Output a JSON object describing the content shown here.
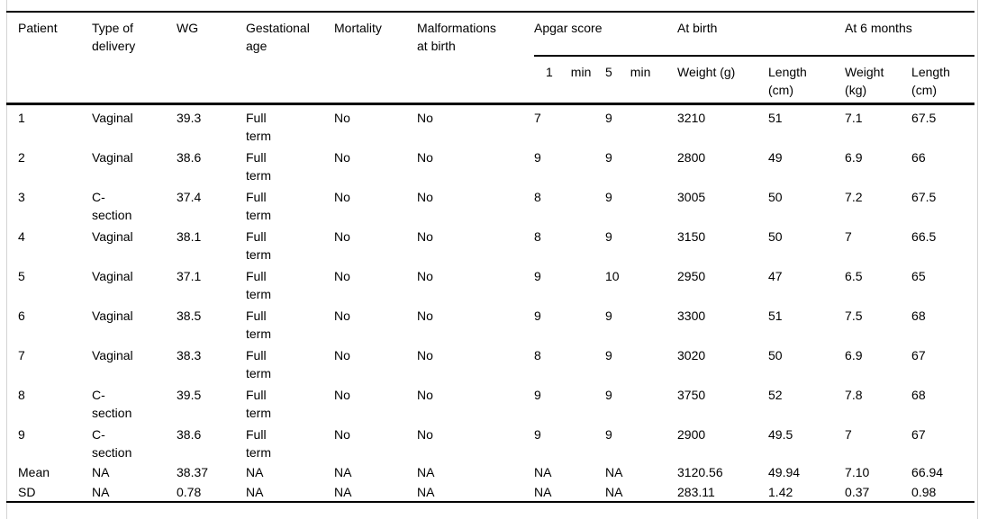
{
  "frame": {
    "background": "#ffffff",
    "frame_border_color": "#d4d4d4",
    "rule_color": "#000000"
  },
  "table": {
    "header": {
      "columns": [
        "Patient",
        "Type of\ndelivery",
        "WG",
        "Gestational\nage",
        "Mortality",
        "Malformations\nat birth"
      ],
      "groups": [
        {
          "label": "Apgar score"
        },
        {
          "label": "At birth"
        },
        {
          "label": "At 6 months"
        }
      ],
      "apgar_subcols": [
        {
          "value": "1",
          "unit": "min"
        },
        {
          "value": "5",
          "unit": "min"
        }
      ],
      "measure_subcols": [
        "Weight (g)",
        "Length\n(cm)",
        "Weight\n(kg)",
        "Length\n(cm)"
      ]
    },
    "rows": [
      {
        "compact": false,
        "cells": [
          "1",
          "Vaginal",
          "39.3",
          "Full\nterm",
          "No",
          "No",
          "7",
          "9",
          "3210",
          "51",
          "7.1",
          "67.5"
        ]
      },
      {
        "compact": false,
        "cells": [
          "2",
          "Vaginal",
          "38.6",
          "Full\nterm",
          "No",
          "No",
          "9",
          "9",
          "2800",
          "49",
          "6.9",
          "66"
        ]
      },
      {
        "compact": false,
        "cells": [
          "3",
          "C-\nsection",
          "37.4",
          "Full\nterm",
          "No",
          "No",
          "8",
          "9",
          "3005",
          "50",
          "7.2",
          "67.5"
        ]
      },
      {
        "compact": false,
        "cells": [
          "4",
          "Vaginal",
          "38.1",
          "Full\nterm",
          "No",
          "No",
          "8",
          "9",
          "3150",
          "50",
          "7",
          "66.5"
        ]
      },
      {
        "compact": false,
        "cells": [
          "5",
          "Vaginal",
          "37.1",
          "Full\nterm",
          "No",
          "No",
          "9",
          "10",
          "2950",
          "47",
          "6.5",
          "65"
        ]
      },
      {
        "compact": false,
        "cells": [
          "6",
          "Vaginal",
          "38.5",
          "Full\nterm",
          "No",
          "No",
          "9",
          "9",
          "3300",
          "51",
          "7.5",
          "68"
        ]
      },
      {
        "compact": false,
        "cells": [
          "7",
          "Vaginal",
          "38.3",
          "Full\nterm",
          "No",
          "No",
          "8",
          "9",
          "3020",
          "50",
          "6.9",
          "67"
        ]
      },
      {
        "compact": false,
        "cells": [
          "8",
          "C-\nsection",
          "39.5",
          "Full\nterm",
          "No",
          "No",
          "9",
          "9",
          "3750",
          "52",
          "7.8",
          "68"
        ]
      },
      {
        "compact": false,
        "cells": [
          "9",
          "C-\nsection",
          "38.6",
          "Full\nterm",
          "No",
          "No",
          "9",
          "9",
          "2900",
          "49.5",
          "7",
          "67"
        ]
      },
      {
        "compact": true,
        "cells": [
          "Mean",
          "NA",
          "38.37",
          "NA",
          "NA",
          "NA",
          "NA",
          "NA",
          "3120.56",
          "49.94",
          "7.10",
          "66.94"
        ]
      },
      {
        "compact": true,
        "cells": [
          "SD",
          "NA",
          "0.78",
          "NA",
          "NA",
          "NA",
          "NA",
          "NA",
          "283.11",
          "1.42",
          "0.37",
          "0.98"
        ]
      }
    ]
  }
}
